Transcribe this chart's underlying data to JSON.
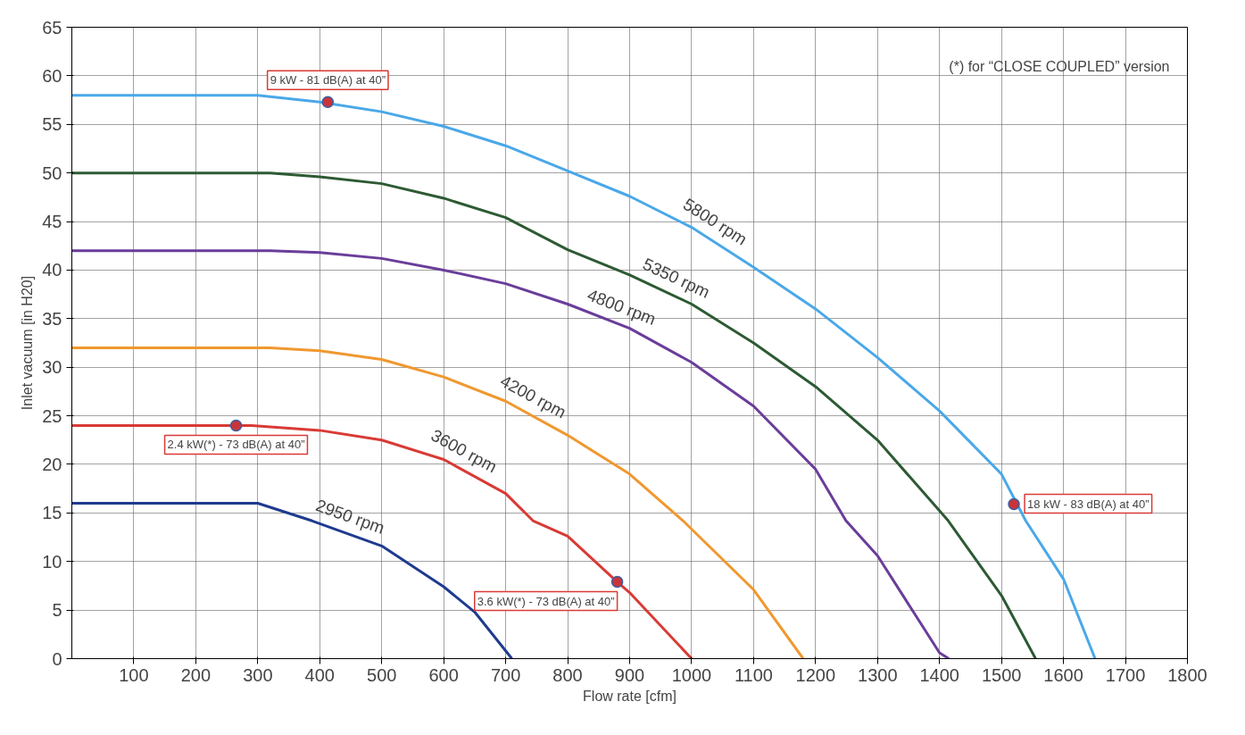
{
  "chart_data": {
    "type": "line",
    "xlabel": "Flow rate [cfm]",
    "ylabel": "Inlet vacuum [in H20]",
    "xlim": [
      0,
      1800
    ],
    "ylim": [
      0,
      65
    ],
    "xticks": [
      100,
      200,
      300,
      400,
      500,
      600,
      700,
      800,
      900,
      1000,
      1100,
      1200,
      1300,
      1400,
      1500,
      1600,
      1700,
      1800
    ],
    "yticks": [
      0,
      5,
      10,
      15,
      20,
      25,
      30,
      35,
      40,
      45,
      50,
      55,
      60,
      65
    ],
    "grid": true,
    "line_style": "solid",
    "marker": "none",
    "series": [
      {
        "name": "2950 rpm",
        "color": "#1f3b8f",
        "x": [
          0,
          100,
          200,
          300,
          387,
          500,
          600,
          650,
          700,
          710
        ],
        "values": [
          16,
          16,
          16,
          16,
          14.2,
          11.6,
          7.4,
          4.8,
          0.8,
          0
        ]
      },
      {
        "name": "3600 rpm",
        "color": "#d93a35",
        "x": [
          0,
          100,
          200,
          290,
          400,
          500,
          600,
          700,
          744,
          800,
          880,
          900,
          1000
        ],
        "values": [
          24,
          24,
          24,
          24,
          23.5,
          22.5,
          20.5,
          17,
          14.2,
          12.6,
          7.9,
          6.8,
          0
        ]
      },
      {
        "name": "4200 rpm",
        "color": "#f0982f",
        "x": [
          0,
          100,
          200,
          320,
          400,
          500,
          600,
          700,
          800,
          900,
          986,
          1100,
          1180
        ],
        "values": [
          32,
          32,
          32,
          32,
          31.7,
          30.8,
          29,
          26.5,
          23,
          19,
          14.2,
          7.1,
          0
        ]
      },
      {
        "name": "4800 rpm",
        "color": "#6a3d9a",
        "x": [
          0,
          100,
          200,
          320,
          400,
          500,
          600,
          700,
          800,
          900,
          1000,
          1100,
          1200,
          1249,
          1300,
          1400,
          1415
        ],
        "values": [
          42,
          42,
          42,
          42,
          41.8,
          41.2,
          40,
          38.6,
          36.5,
          34,
          30.5,
          26,
          19.5,
          14.2,
          10.6,
          0.6,
          0
        ]
      },
      {
        "name": "5350 rpm",
        "color": "#2d5a33",
        "x": [
          0,
          100,
          200,
          320,
          400,
          500,
          600,
          700,
          800,
          900,
          1000,
          1100,
          1200,
          1300,
          1414,
          1500,
          1555
        ],
        "values": [
          50,
          50,
          50,
          50,
          49.6,
          48.9,
          47.4,
          45.4,
          42.1,
          39.5,
          36.5,
          32.5,
          28,
          22.5,
          14.2,
          6.5,
          0
        ]
      },
      {
        "name": "5800 rpm",
        "color": "#4aa8e8",
        "x": [
          0,
          100,
          200,
          300,
          400,
          500,
          600,
          700,
          800,
          900,
          1000,
          1100,
          1200,
          1300,
          1400,
          1500,
          1539,
          1600,
          1651
        ],
        "values": [
          58,
          58,
          58,
          58,
          57.3,
          56.3,
          54.8,
          52.8,
          50.2,
          47.6,
          44.4,
          40.3,
          36,
          31,
          25.5,
          19,
          14.2,
          8.2,
          0
        ]
      },
      {
        "type": "scatter",
        "color": "#c9343a",
        "marker": "circle",
        "x": [
          413,
          265,
          880,
          1520
        ],
        "values": [
          57.3,
          24,
          7.9,
          15.9
        ]
      }
    ],
    "annotations": [
      {
        "text": "9 kW - 81 dB(A) at 40”",
        "x": 413,
        "y": 57.3
      },
      {
        "text": "2.4 kW(*) - 73 dB(A) at 40”",
        "x": 265,
        "y": 24
      },
      {
        "text": "3.6 kW(*) - 73 dB(A) at 40”",
        "x": 880,
        "y": 7.9
      },
      {
        "text": "18 kW - 83 dB(A) at 40”",
        "x": 1520,
        "y": 15.9
      },
      "(*) for “CLOSE COUPLED” version"
    ]
  }
}
